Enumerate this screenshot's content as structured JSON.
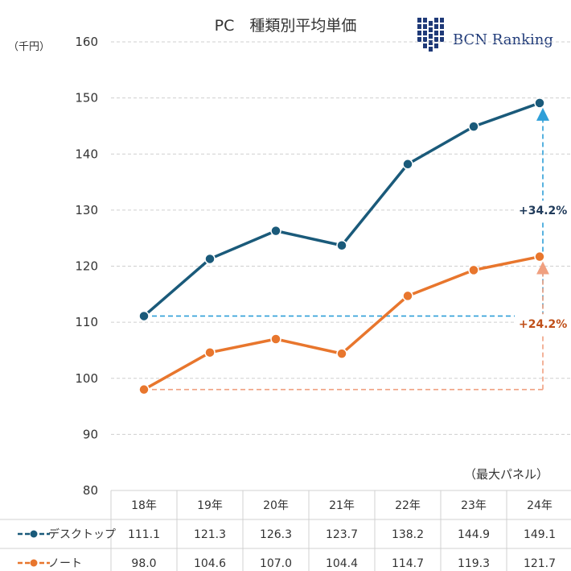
{
  "chart_data": {
    "type": "line",
    "title": "PC　種類別平均単価",
    "unit_label": "（千円）",
    "note": "（最大パネル）",
    "logo_text": "BCN Ranking",
    "categories": [
      "18年",
      "19年",
      "20年",
      "21年",
      "22年",
      "23年",
      "24年"
    ],
    "ylim": [
      80,
      160
    ],
    "yticks": [
      80,
      90,
      100,
      110,
      120,
      130,
      140,
      150,
      160
    ],
    "grid": true,
    "series": [
      {
        "name": "デスクトップ",
        "color": "#1a5a7a",
        "values": [
          111.1,
          121.3,
          126.3,
          123.7,
          138.2,
          144.9,
          149.1
        ],
        "labels": [
          "111.1",
          "121.3",
          "126.3",
          "123.7",
          "138.2",
          "144.9",
          "149.1"
        ]
      },
      {
        "name": "ノート",
        "color": "#e8762d",
        "values": [
          98.0,
          104.6,
          107.0,
          104.4,
          114.7,
          119.3,
          121.7
        ],
        "labels": [
          "98.0",
          "104.6",
          "107.0",
          "104.4",
          "114.7",
          "119.3",
          "121.7"
        ]
      }
    ],
    "annotations": [
      {
        "text": "+34.2%",
        "series": 0,
        "color": "#1f3a5a",
        "arrow_color": "#2f9fd8"
      },
      {
        "text": "+24.2%",
        "series": 1,
        "color": "#c0501a",
        "arrow_color": "#f0a080"
      }
    ]
  }
}
